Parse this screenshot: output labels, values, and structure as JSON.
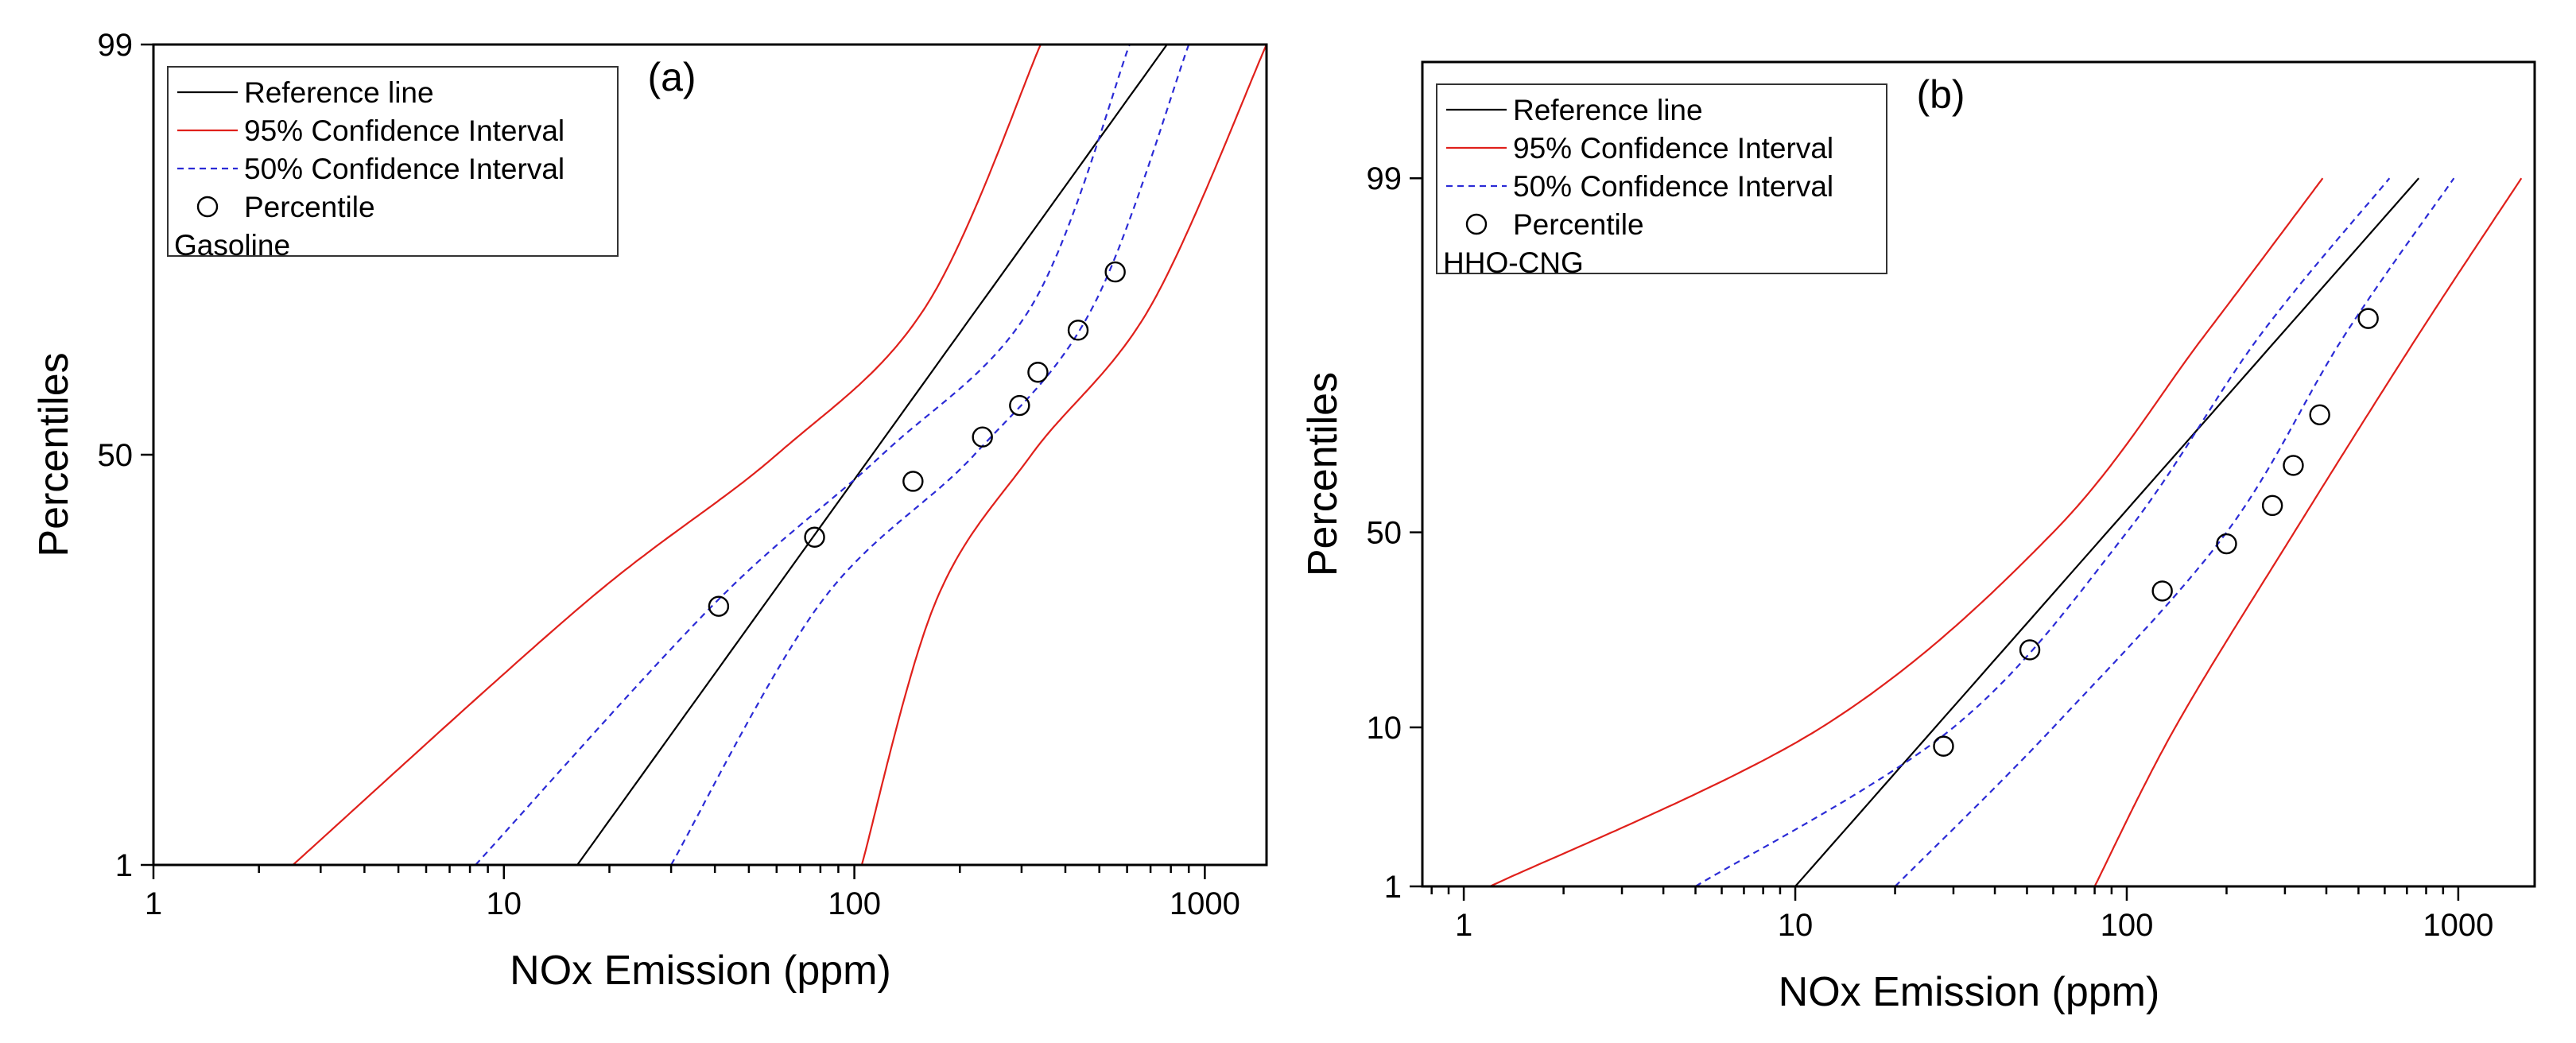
{
  "chart_data": [
    {
      "type": "scatter",
      "panel_label": "(a)",
      "subject": "Gasoline",
      "xlabel": "NOx Emission (ppm)",
      "ylabel": "Percentiles",
      "x_scale": "log",
      "y_scale": "probability",
      "xlim": [
        1,
        1500
      ],
      "ylim": [
        1,
        99
      ],
      "x_ticks": [
        1,
        10,
        100,
        1000
      ],
      "x_tick_labels": [
        "1",
        "10",
        "100",
        "1000"
      ],
      "y_ticks": [
        1,
        50,
        99
      ],
      "y_tick_labels": [
        "1",
        "50",
        "99"
      ],
      "legend": [
        "Reference line",
        "95% Confidence Interval",
        "50% Confidence Interval",
        "Percentile"
      ],
      "series": [
        {
          "name": "Percentile",
          "x": [
            41,
            77,
            147,
            232,
            296,
            334,
            435,
            555
          ],
          "y": [
            19.5,
            32,
            44,
            54,
            61,
            68,
            76,
            85
          ]
        },
        {
          "name": "Reference line",
          "x": [
            16.2,
            780
          ],
          "y": [
            1,
            99
          ]
        },
        {
          "name": "50% Confidence Interval upper",
          "x": [
            8.3,
            40,
            120,
            320,
            610
          ],
          "y": [
            1,
            20,
            50,
            80,
            99
          ]
        },
        {
          "name": "50% Confidence Interval lower",
          "x": [
            30,
            80,
            220,
            480,
            900
          ],
          "y": [
            1,
            20,
            50,
            80,
            99
          ]
        },
        {
          "name": "95% Confidence Interval upper",
          "x": [
            2.5,
            17,
            60,
            160,
            340
          ],
          "y": [
            1,
            20,
            50,
            80,
            99
          ]
        },
        {
          "name": "95% Confidence Interval lower",
          "x": [
            105,
            170,
            320,
            700,
            1500
          ],
          "y": [
            1,
            20,
            50,
            80,
            99
          ]
        }
      ]
    },
    {
      "type": "scatter",
      "panel_label": "(b)",
      "subject": "HHO-CNG",
      "xlabel": "NOx Emission (ppm)",
      "ylabel": "Percentiles",
      "x_scale": "log",
      "y_scale": "probability",
      "xlim": [
        0.75,
        1700
      ],
      "ylim": [
        1,
        99.9
      ],
      "x_ticks": [
        1,
        10,
        100,
        1000
      ],
      "x_tick_labels": [
        "1",
        "10",
        "100",
        "1000"
      ],
      "y_ticks": [
        1,
        10,
        50,
        99
      ],
      "y_tick_labels": [
        "1",
        "10",
        "50",
        "99"
      ],
      "legend": [
        "Reference line",
        "95% Confidence Interval",
        "50% Confidence Interval",
        "Percentile"
      ],
      "series": [
        {
          "name": "Percentile",
          "x": [
            28,
            51,
            128,
            200,
            275,
            318,
            382,
            535
          ],
          "y": [
            8,
            22,
            35,
            47,
            57,
            67,
            78,
            92
          ]
        },
        {
          "name": "Reference line",
          "x": [
            10,
            760
          ],
          "y": [
            1,
            99
          ]
        },
        {
          "name": "50% Confidence Interval upper",
          "x": [
            5,
            30,
            100,
            250,
            620
          ],
          "y": [
            1,
            10,
            50,
            90,
            99
          ]
        },
        {
          "name": "50% Confidence Interval lower",
          "x": [
            20,
            60,
            200,
            450,
            970
          ],
          "y": [
            1,
            10,
            50,
            90,
            99
          ]
        },
        {
          "name": "95% Confidence Interval upper",
          "x": [
            1.2,
            12,
            60,
            170,
            390
          ],
          "y": [
            1,
            10,
            50,
            90,
            99
          ]
        },
        {
          "name": "95% Confidence Interval lower",
          "x": [
            80,
            140,
            320,
            750,
            1550
          ],
          "y": [
            1,
            10,
            50,
            90,
            99
          ]
        }
      ]
    }
  ]
}
